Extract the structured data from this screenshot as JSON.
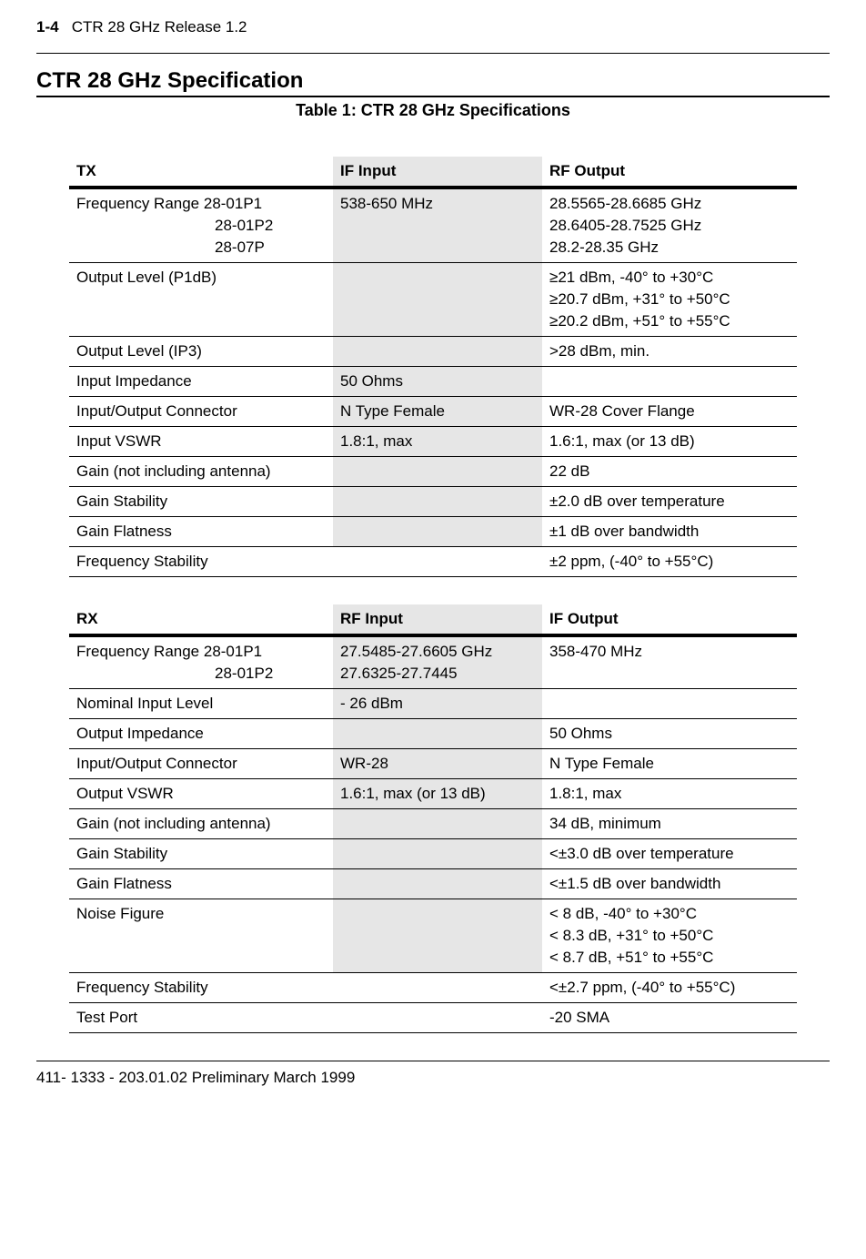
{
  "header": {
    "page_num": "1-4",
    "doc_title": "CTR 28 GHz Release 1.2"
  },
  "section_title": "CTR 28 GHz Specification",
  "table_caption": "Table 1: CTR 28 GHz Specifications",
  "table_tx": {
    "headers": [
      "TX",
      "IF Input",
      "RF Output"
    ],
    "rows": [
      {
        "c1_lines": [
          "Frequency Range 28-01P1",
          "28-01P2",
          "28-07P"
        ],
        "c1_indent_after_first": true,
        "c2_lines": [
          "538-650 MHz"
        ],
        "c2_shaded": true,
        "c3_lines": [
          "28.5565-28.6685 GHz",
          "28.6405-28.7525 GHz",
          "28.2-28.35 GHz"
        ]
      },
      {
        "c1_lines": [
          "Output Level (P1dB)"
        ],
        "c2_lines": [],
        "c2_shaded": true,
        "c3_lines": [
          "≥21 dBm, -40° to +30°C",
          "≥20.7 dBm, +31° to +50°C",
          "≥20.2 dBm, +51° to +55°C"
        ]
      },
      {
        "c1_lines": [
          "Output Level (IP3)"
        ],
        "c2_lines": [],
        "c2_shaded": true,
        "c3_lines": [
          ">28 dBm, min."
        ]
      },
      {
        "c1_lines": [
          "Input Impedance"
        ],
        "c2_lines": [
          "50 Ohms"
        ],
        "c2_shaded": true,
        "c3_lines": []
      },
      {
        "c1_lines": [
          "Input/Output Connector"
        ],
        "c2_lines": [
          "N Type Female"
        ],
        "c2_shaded": true,
        "c3_lines": [
          "WR-28 Cover Flange"
        ]
      },
      {
        "c1_lines": [
          "Input VSWR"
        ],
        "c2_lines": [
          "1.8:1, max"
        ],
        "c2_shaded": true,
        "c3_lines": [
          "1.6:1, max (or 13 dB)"
        ]
      },
      {
        "c1_lines": [
          "Gain (not including antenna)"
        ],
        "c2_lines": [],
        "c2_shaded": true,
        "c3_lines": [
          "22 dB"
        ]
      },
      {
        "c1_lines": [
          "Gain Stability"
        ],
        "c2_lines": [],
        "c2_shaded": true,
        "c3_lines": [
          "±2.0 dB over temperature"
        ]
      },
      {
        "c1_lines": [
          "Gain Flatness"
        ],
        "c2_lines": [],
        "c2_shaded": true,
        "c3_lines": [
          "±1 dB over bandwidth"
        ]
      },
      {
        "c1_lines": [
          "Frequency Stability"
        ],
        "c2_lines": [],
        "c2_shaded": false,
        "c3_lines": [
          "±2 ppm, (-40° to +55°C)"
        ]
      }
    ]
  },
  "table_rx": {
    "headers": [
      "RX",
      "RF Input",
      "IF Output"
    ],
    "rows": [
      {
        "c1_lines": [
          "Frequency Range 28-01P1",
          "28-01P2"
        ],
        "c1_indent_after_first": true,
        "c2_lines": [
          "27.5485-27.6605 GHz",
          "27.6325-27.7445"
        ],
        "c2_shaded": true,
        "c3_lines": [
          "358-470 MHz"
        ]
      },
      {
        "c1_lines": [
          "Nominal Input Level"
        ],
        "c2_lines": [
          "- 26 dBm"
        ],
        "c2_shaded": true,
        "c3_lines": []
      },
      {
        "c1_lines": [
          "Output Impedance"
        ],
        "c2_lines": [],
        "c2_shaded": true,
        "c3_lines": [
          "50 Ohms"
        ]
      },
      {
        "c1_lines": [
          "Input/Output Connector"
        ],
        "c2_lines": [
          " WR-28"
        ],
        "c2_shaded": true,
        "c3_lines": [
          "N Type Female"
        ]
      },
      {
        "c1_lines": [
          "Output VSWR"
        ],
        "c2_lines": [
          "1.6:1, max (or 13 dB)"
        ],
        "c2_shaded": true,
        "c3_lines": [
          "1.8:1, max"
        ]
      },
      {
        "c1_lines": [
          "Gain (not including antenna)"
        ],
        "c2_lines": [],
        "c2_shaded": true,
        "c3_lines": [
          "34 dB, minimum"
        ]
      },
      {
        "c1_lines": [
          "Gain Stability"
        ],
        "c2_lines": [],
        "c2_shaded": true,
        "c3_lines": [
          "<±3.0 dB over temperature"
        ]
      },
      {
        "c1_lines": [
          "Gain Flatness"
        ],
        "c2_lines": [],
        "c2_shaded": true,
        "c3_lines": [
          "<±1.5 dB over bandwidth"
        ]
      },
      {
        "c1_lines": [
          "Noise Figure"
        ],
        "c2_lines": [],
        "c2_shaded": true,
        "c3_lines": [
          "< 8 dB, -40° to +30°C",
          "< 8.3 dB, +31° to +50°C",
          "< 8.7 dB, +51° to +55°C"
        ]
      },
      {
        "c1_lines": [
          "Frequency Stability"
        ],
        "c2_lines": [],
        "c2_shaded": false,
        "c3_lines": [
          "<±2.7 ppm, (-40° to +55°C)"
        ]
      },
      {
        "c1_lines": [
          "Test Port"
        ],
        "c2_lines": [],
        "c2_shaded": false,
        "c3_lines": [
          "-20 SMA"
        ]
      }
    ]
  },
  "footer": {
    "doc_id": "411- 1333 - 203.01.02   Preliminary  March 1999"
  },
  "colors": {
    "background": "#ffffff",
    "text": "#000000",
    "shaded_cell": "#e6e6e6",
    "border": "#000000"
  }
}
